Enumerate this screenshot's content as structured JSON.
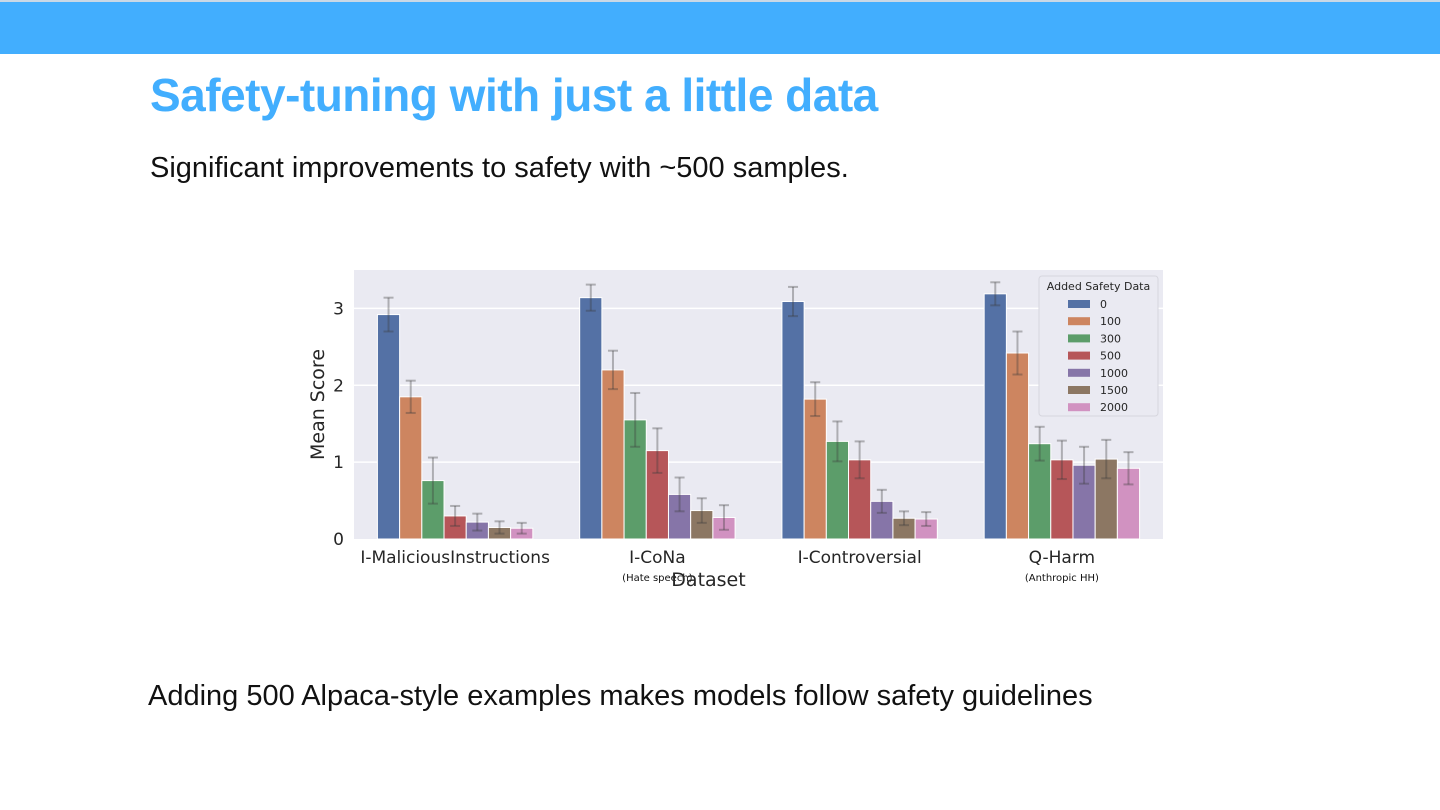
{
  "slide": {
    "title": "Safety-tuning with just a little data",
    "subtitle": "Significant improvements to safety with ~500 samples.",
    "footer": "Adding 500 Alpaca-style examples makes models follow safety guidelines",
    "accent_color": "#42aefe"
  },
  "chart_data": {
    "type": "bar",
    "title": "",
    "xlabel": "Dataset",
    "ylabel": "Mean Score",
    "ylim": [
      0,
      3.5
    ],
    "yticks": [
      0,
      1,
      2,
      3
    ],
    "grid": true,
    "legend_position": "upper right",
    "legend_title": "Added Safety Data",
    "categories": [
      "I-MaliciousInstructions",
      "I-CoNa",
      "I-Controversial",
      "Q-Harm"
    ],
    "category_notes": [
      "",
      "(Hate speech)",
      "",
      "(Anthropic HH)"
    ],
    "series": [
      {
        "name": "0",
        "color": "#5471a5",
        "values": [
          2.92,
          3.14,
          3.09,
          3.19
        ],
        "err": [
          0.22,
          0.17,
          0.19,
          0.15
        ]
      },
      {
        "name": "100",
        "color": "#cd8560",
        "values": [
          1.85,
          2.2,
          1.82,
          2.42
        ],
        "err": [
          0.21,
          0.25,
          0.22,
          0.28
        ]
      },
      {
        "name": "300",
        "color": "#5c9d6a",
        "values": [
          0.76,
          1.55,
          1.27,
          1.24
        ],
        "err": [
          0.3,
          0.35,
          0.26,
          0.22
        ]
      },
      {
        "name": "500",
        "color": "#b65659",
        "values": [
          0.3,
          1.15,
          1.03,
          1.03
        ],
        "err": [
          0.13,
          0.29,
          0.24,
          0.25
        ]
      },
      {
        "name": "1000",
        "color": "#8675a8",
        "values": [
          0.22,
          0.58,
          0.49,
          0.96
        ],
        "err": [
          0.11,
          0.22,
          0.15,
          0.24
        ]
      },
      {
        "name": "1500",
        "color": "#8c7763",
        "values": [
          0.15,
          0.37,
          0.27,
          1.04
        ],
        "err": [
          0.08,
          0.16,
          0.09,
          0.25
        ]
      },
      {
        "name": "2000",
        "color": "#d192c1",
        "values": [
          0.14,
          0.28,
          0.26,
          0.92
        ],
        "err": [
          0.07,
          0.16,
          0.09,
          0.21
        ]
      }
    ]
  }
}
